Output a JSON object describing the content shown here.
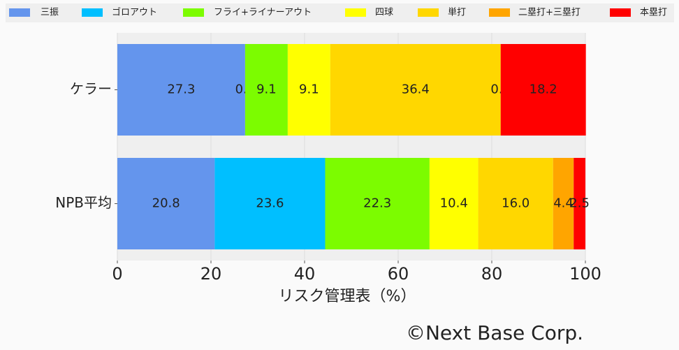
{
  "chart_data": {
    "type": "stacked-bar-horizontal",
    "categories": [
      "ケラー",
      "NPB平均"
    ],
    "series": [
      {
        "name": "三振",
        "color": "#6495ed",
        "values": [
          27.3,
          20.8
        ],
        "value_labels": [
          "27.3",
          "20.8"
        ]
      },
      {
        "name": "ゴロアウト",
        "color": "#00bfff",
        "values": [
          0.0,
          23.6
        ],
        "value_labels": [
          "0.0",
          "23.6"
        ]
      },
      {
        "name": "フライ+ライナーアウト",
        "color": "#7cfc00",
        "values": [
          9.1,
          22.3
        ],
        "value_labels": [
          "9.1",
          "22.3"
        ]
      },
      {
        "name": "四球",
        "color": "#ffff00",
        "values": [
          9.1,
          10.4
        ],
        "value_labels": [
          "9.1",
          "10.4"
        ]
      },
      {
        "name": "単打",
        "color": "#ffd700",
        "values": [
          36.4,
          16.0
        ],
        "value_labels": [
          "36.4",
          "16.0"
        ]
      },
      {
        "name": "二塁打+三塁打",
        "color": "#ffa500",
        "values": [
          0.0,
          4.4
        ],
        "value_labels": [
          "0.0",
          "4.4"
        ]
      },
      {
        "name": "本塁打",
        "color": "#ff0000",
        "values": [
          18.2,
          2.5
        ],
        "value_labels": [
          "18.2",
          "2.5"
        ]
      }
    ],
    "xlabel": "リスク管理表（%）",
    "xlim": [
      0,
      100
    ],
    "xticks": [
      0,
      20,
      40,
      60,
      80,
      100
    ],
    "grid": true,
    "credit": "©Next Base Corp."
  }
}
